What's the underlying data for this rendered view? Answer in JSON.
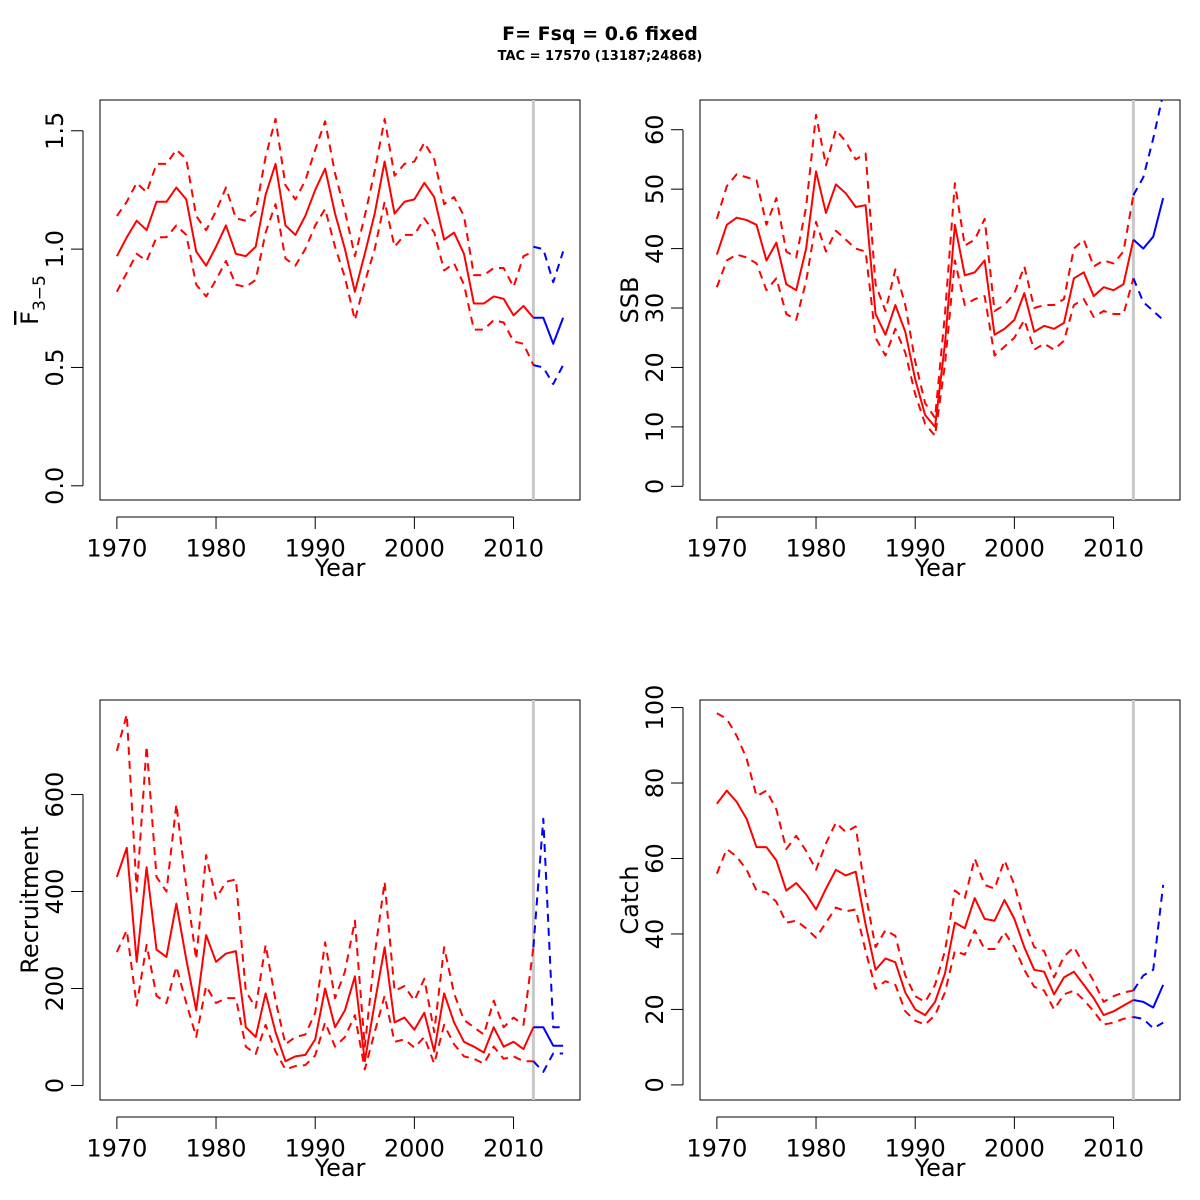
{
  "figure": {
    "title": "F= Fsq = 0.6 fixed",
    "subtitle": "TAC = 17570 (13187;24868)"
  },
  "colors": {
    "historical": "#ff0000",
    "projection": "#0000ff",
    "reference_line": "#c8c8c8",
    "axis": "#000000"
  },
  "chart_data": [
    {
      "id": "f",
      "type": "line",
      "xlabel": "Year",
      "ylabel": "F",
      "ylabel_subscript": "3−5",
      "xlim": [
        1968.3,
        2016.7
      ],
      "ylim": [
        -0.06,
        1.63
      ],
      "xticks": [
        1970,
        1980,
        1990,
        2000,
        2010
      ],
      "yticks": [
        0.0,
        0.5,
        1.0,
        1.5
      ],
      "ytick_labels": [
        "0.0",
        "0.5",
        "1.0",
        "1.5"
      ],
      "vline": 2012,
      "historical": {
        "x": [
          1970,
          1971,
          1972,
          1973,
          1974,
          1975,
          1976,
          1977,
          1978,
          1979,
          1980,
          1981,
          1982,
          1983,
          1984,
          1985,
          1986,
          1987,
          1988,
          1989,
          1990,
          1991,
          1992,
          1993,
          1994,
          1995,
          1996,
          1997,
          1998,
          1999,
          2000,
          2001,
          2002,
          2003,
          2004,
          2005,
          2006,
          2007,
          2008,
          2009,
          2010,
          2011,
          2012
        ],
        "mid": [
          0.97,
          1.05,
          1.12,
          1.08,
          1.2,
          1.2,
          1.26,
          1.21,
          0.99,
          0.93,
          1.01,
          1.1,
          0.98,
          0.97,
          1.01,
          1.23,
          1.36,
          1.1,
          1.06,
          1.14,
          1.25,
          1.34,
          1.15,
          1.0,
          0.82,
          0.98,
          1.15,
          1.37,
          1.15,
          1.2,
          1.21,
          1.28,
          1.22,
          1.04,
          1.07,
          0.98,
          0.77,
          0.77,
          0.8,
          0.79,
          0.72,
          0.76,
          0.71
        ],
        "upper": [
          1.14,
          1.2,
          1.28,
          1.24,
          1.36,
          1.36,
          1.42,
          1.38,
          1.14,
          1.08,
          1.16,
          1.26,
          1.13,
          1.12,
          1.16,
          1.39,
          1.55,
          1.27,
          1.21,
          1.29,
          1.42,
          1.54,
          1.32,
          1.16,
          0.97,
          1.14,
          1.33,
          1.55,
          1.31,
          1.36,
          1.37,
          1.45,
          1.38,
          1.19,
          1.22,
          1.14,
          0.89,
          0.89,
          0.92,
          0.92,
          0.84,
          0.97,
          0.99
        ],
        "lower": [
          0.82,
          0.9,
          0.98,
          0.95,
          1.05,
          1.05,
          1.1,
          1.06,
          0.85,
          0.8,
          0.87,
          0.95,
          0.85,
          0.84,
          0.87,
          1.07,
          1.19,
          0.96,
          0.93,
          1.0,
          1.1,
          1.17,
          1.01,
          0.88,
          0.7,
          0.86,
          1.0,
          1.2,
          1.01,
          1.06,
          1.06,
          1.13,
          1.07,
          0.91,
          0.94,
          0.85,
          0.66,
          0.66,
          0.7,
          0.69,
          0.61,
          0.6,
          0.51
        ]
      },
      "projection": {
        "x": [
          2012,
          2013,
          2014,
          2015
        ],
        "mid": [
          0.71,
          0.71,
          0.6,
          0.71
        ],
        "upper": [
          1.01,
          1.0,
          0.86,
          0.99
        ],
        "lower": [
          0.51,
          0.5,
          0.43,
          0.51
        ]
      }
    },
    {
      "id": "ssb",
      "type": "line",
      "xlabel": "Year",
      "ylabel": "SSB",
      "xlim": [
        1968.3,
        2016.7
      ],
      "ylim": [
        -2.3,
        65.0
      ],
      "xticks": [
        1970,
        1980,
        1990,
        2000,
        2010
      ],
      "yticks": [
        0,
        10,
        20,
        30,
        40,
        50,
        60
      ],
      "ytick_labels": [
        "0",
        "10",
        "20",
        "30",
        "40",
        "50",
        "60"
      ],
      "vline": 2012,
      "historical": {
        "x": [
          1970,
          1971,
          1972,
          1973,
          1974,
          1975,
          1976,
          1977,
          1978,
          1979,
          1980,
          1981,
          1982,
          1983,
          1984,
          1985,
          1986,
          1987,
          1988,
          1989,
          1990,
          1991,
          1992,
          1993,
          1994,
          1995,
          1996,
          1997,
          1998,
          1999,
          2000,
          2001,
          2002,
          2003,
          2004,
          2005,
          2006,
          2007,
          2008,
          2009,
          2010,
          2011,
          2012
        ],
        "mid": [
          39.0,
          44.0,
          45.2,
          44.8,
          44.0,
          38.0,
          41.0,
          34.0,
          33.0,
          40.0,
          53.0,
          46.0,
          50.8,
          49.3,
          47.0,
          47.3,
          29.0,
          25.5,
          30.5,
          26.0,
          18.0,
          12.0,
          10.0,
          24.0,
          44.0,
          35.5,
          36.0,
          38.0,
          25.5,
          26.5,
          28.0,
          32.5,
          26.0,
          27.0,
          26.5,
          27.5,
          35.0,
          36.0,
          32.0,
          33.5,
          33.0,
          34.0,
          41.5
        ],
        "upper": [
          45.0,
          50.5,
          52.5,
          52.0,
          51.5,
          44.0,
          48.5,
          39.5,
          38.5,
          47.0,
          62.5,
          54.0,
          60.0,
          58.0,
          55.0,
          56.0,
          34.0,
          29.5,
          36.5,
          30.5,
          21.0,
          14.0,
          11.5,
          29.0,
          51.0,
          40.5,
          41.5,
          45.0,
          29.5,
          30.5,
          32.5,
          37.0,
          30.0,
          30.5,
          30.5,
          31.5,
          40.0,
          41.5,
          37.0,
          38.0,
          37.5,
          39.5,
          49.0
        ],
        "lower": [
          33.5,
          38.0,
          39.0,
          38.5,
          37.5,
          33.0,
          35.0,
          29.0,
          28.0,
          34.5,
          44.5,
          39.5,
          43.0,
          41.5,
          40.0,
          39.5,
          25.0,
          22.0,
          26.5,
          22.5,
          15.5,
          10.5,
          8.5,
          20.5,
          38.0,
          30.5,
          31.5,
          32.0,
          22.0,
          23.5,
          25.0,
          28.0,
          23.0,
          24.0,
          23.0,
          24.5,
          30.5,
          31.5,
          28.5,
          29.5,
          29.0,
          29.0,
          35.0
        ]
      },
      "projection": {
        "x": [
          2012,
          2013,
          2014,
          2015
        ],
        "mid": [
          41.5,
          40.0,
          42.0,
          48.5
        ],
        "upper": [
          49.0,
          52.0,
          58.5,
          66.0
        ],
        "lower": [
          35.0,
          31.0,
          29.5,
          28.0
        ]
      }
    },
    {
      "id": "recruitment",
      "type": "line",
      "xlabel": "Year",
      "ylabel": "Recruitment",
      "xlim": [
        1968.3,
        2016.7
      ],
      "ylim": [
        -30,
        795
      ],
      "xticks": [
        1970,
        1980,
        1990,
        2000,
        2010
      ],
      "yticks": [
        0,
        200,
        400,
        600
      ],
      "ytick_labels": [
        "0",
        "200",
        "400",
        "600"
      ],
      "vline": 2012,
      "historical": {
        "x": [
          1970,
          1971,
          1972,
          1973,
          1974,
          1975,
          1976,
          1977,
          1978,
          1979,
          1980,
          1981,
          1982,
          1983,
          1984,
          1985,
          1986,
          1987,
          1988,
          1989,
          1990,
          1991,
          1992,
          1993,
          1994,
          1995,
          1996,
          1997,
          1998,
          1999,
          2000,
          2001,
          2002,
          2003,
          2004,
          2005,
          2006,
          2007,
          2008,
          2009,
          2010,
          2011,
          2012
        ],
        "mid": [
          430,
          490,
          255,
          450,
          280,
          265,
          375,
          260,
          155,
          310,
          255,
          272,
          277,
          120,
          100,
          190,
          110,
          50,
          60,
          63,
          95,
          200,
          120,
          155,
          225,
          50,
          170,
          285,
          130,
          140,
          115,
          150,
          70,
          190,
          130,
          90,
          80,
          68,
          120,
          80,
          90,
          75,
          120
        ],
        "upper": [
          690,
          765,
          400,
          700,
          430,
          400,
          580,
          410,
          260,
          475,
          385,
          420,
          425,
          195,
          160,
          290,
          175,
          85,
          100,
          105,
          150,
          295,
          180,
          235,
          340,
          80,
          270,
          420,
          195,
          205,
          175,
          220,
          110,
          285,
          190,
          135,
          120,
          105,
          175,
          120,
          140,
          125,
          285
        ],
        "lower": [
          275,
          320,
          165,
          290,
          185,
          170,
          245,
          170,
          100,
          205,
          170,
          180,
          180,
          80,
          65,
          125,
          70,
          33,
          40,
          42,
          62,
          130,
          80,
          100,
          145,
          33,
          110,
          185,
          90,
          95,
          78,
          100,
          45,
          125,
          85,
          60,
          55,
          45,
          80,
          55,
          60,
          50,
          50
        ]
      },
      "projection": {
        "x": [
          2012,
          2013,
          2014,
          2015
        ],
        "mid": [
          120,
          120,
          82,
          82
        ],
        "upper": [
          285,
          550,
          120,
          120
        ],
        "lower": [
          50,
          28,
          66,
          66
        ]
      }
    },
    {
      "id": "catch",
      "type": "line",
      "xlabel": "Year",
      "ylabel": "Catch",
      "xlim": [
        1968.3,
        2016.7
      ],
      "ylim": [
        -4,
        102
      ],
      "xticks": [
        1970,
        1980,
        1990,
        2000,
        2010
      ],
      "yticks": [
        0,
        20,
        40,
        60,
        80,
        100
      ],
      "ytick_labels": [
        "0",
        "20",
        "40",
        "60",
        "80",
        "100"
      ],
      "vline": 2012,
      "historical": {
        "x": [
          1970,
          1971,
          1972,
          1973,
          1974,
          1975,
          1976,
          1977,
          1978,
          1979,
          1980,
          1981,
          1982,
          1983,
          1984,
          1985,
          1986,
          1987,
          1988,
          1989,
          1990,
          1991,
          1992,
          1993,
          1994,
          1995,
          1996,
          1997,
          1998,
          1999,
          2000,
          2001,
          2002,
          2003,
          2004,
          2005,
          2006,
          2007,
          2008,
          2009,
          2010,
          2011,
          2012
        ],
        "mid": [
          74.5,
          78.0,
          75.0,
          70.5,
          63.0,
          63.0,
          59.5,
          51.5,
          53.5,
          50.5,
          46.5,
          52.0,
          57.0,
          55.5,
          56.5,
          42.5,
          30.5,
          33.5,
          32.5,
          24.5,
          20.0,
          18.5,
          22.0,
          29.5,
          43.0,
          41.5,
          49.5,
          44.0,
          43.5,
          49.0,
          44.0,
          36.5,
          30.5,
          30.0,
          24.0,
          28.5,
          30.0,
          26.5,
          23.0,
          18.5,
          19.5,
          21.0,
          22.5
        ],
        "upper": [
          98.5,
          97.0,
          92.5,
          86.5,
          76.5,
          78.0,
          73.0,
          62.5,
          66.0,
          62.0,
          57.0,
          64.0,
          69.5,
          67.0,
          68.5,
          50.5,
          36.5,
          41.0,
          39.5,
          29.0,
          23.5,
          22.0,
          26.5,
          35.5,
          51.5,
          49.5,
          60.0,
          53.0,
          52.0,
          59.5,
          53.0,
          43.5,
          36.5,
          35.5,
          28.5,
          34.0,
          36.5,
          32.0,
          27.5,
          22.0,
          23.5,
          24.5,
          25.0
        ],
        "lower": [
          56.0,
          62.5,
          60.5,
          57.0,
          51.5,
          51.0,
          48.5,
          43.0,
          43.5,
          41.5,
          39.0,
          43.0,
          47.0,
          46.0,
          46.5,
          35.5,
          25.5,
          27.5,
          26.5,
          19.5,
          17.0,
          16.0,
          18.5,
          24.5,
          35.5,
          34.5,
          41.0,
          36.0,
          36.0,
          40.5,
          36.5,
          30.5,
          26.0,
          25.0,
          20.0,
          24.0,
          25.0,
          22.5,
          19.5,
          16.0,
          16.5,
          17.5,
          18.0
        ]
      },
      "projection": {
        "x": [
          2012,
          2013,
          2014,
          2015
        ],
        "mid": [
          22.5,
          22.0,
          20.5,
          26.5
        ],
        "upper": [
          25.0,
          29.0,
          30.5,
          53.0
        ],
        "lower": [
          18.0,
          17.5,
          15.0,
          16.5
        ]
      }
    }
  ]
}
